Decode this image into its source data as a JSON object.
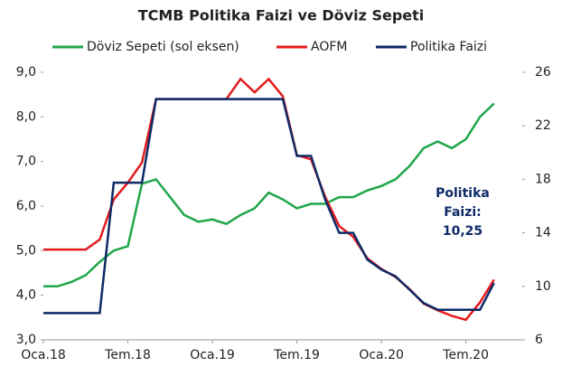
{
  "chart_data": {
    "type": "line",
    "title": "TCMB Politika Faizi ve Döviz Sepeti",
    "categories": [
      "Oca.18",
      null,
      null,
      null,
      null,
      null,
      "Tem.18",
      null,
      null,
      null,
      null,
      null,
      "Oca.19",
      null,
      null,
      null,
      null,
      null,
      "Tem.19",
      null,
      null,
      null,
      null,
      null,
      "Oca.20",
      null,
      null,
      null,
      null,
      null,
      "Tem.20",
      null,
      null
    ],
    "series": [
      {
        "name": "Döviz Sepeti (sol eksen)",
        "color": "#1fa64a",
        "axis": "y",
        "values": [
          4.2,
          4.2,
          4.3,
          4.45,
          4.75,
          5.0,
          5.1,
          6.5,
          6.6,
          6.2,
          5.8,
          5.65,
          5.7,
          5.6,
          5.8,
          5.95,
          6.3,
          6.15,
          5.95,
          6.05,
          6.05,
          6.2,
          6.2,
          6.35,
          6.45,
          6.6,
          6.9,
          7.3,
          7.45,
          7.3,
          7.5,
          8.0,
          8.3
        ]
      },
      {
        "name": "AOFM",
        "color": "#e41a1c",
        "axis": "y2",
        "values": [
          12.75,
          12.75,
          12.75,
          12.75,
          13.5,
          16.5,
          17.75,
          19.25,
          24,
          24,
          24,
          24,
          24,
          24,
          25.5,
          24.5,
          25.5,
          24.2,
          19.8,
          19.5,
          16.7,
          14.5,
          13.7,
          12.1,
          11.3,
          10.7,
          9.8,
          8.7,
          8.2,
          7.8,
          7.5,
          8.8,
          10.5
        ]
      },
      {
        "name": "Politika Faizi",
        "color": "#0d2a66",
        "axis": "y2",
        "values": [
          8,
          8,
          8,
          8,
          8,
          17.75,
          17.75,
          17.75,
          24,
          24,
          24,
          24,
          24,
          24,
          24,
          24,
          24,
          24,
          19.75,
          19.75,
          16.5,
          14,
          14,
          12,
          11.25,
          10.75,
          9.75,
          8.75,
          8.25,
          8.25,
          8.25,
          8.25,
          10.25
        ]
      }
    ],
    "ylim": [
      3,
      9
    ],
    "yticks": [
      {
        "value": 3,
        "label": "3,0"
      },
      {
        "value": 4,
        "label": "4,0"
      },
      {
        "value": 5,
        "label": "5,0"
      },
      {
        "value": 6,
        "label": "6,0"
      },
      {
        "value": 7,
        "label": "7,0"
      },
      {
        "value": 8,
        "label": "8,0"
      },
      {
        "value": 9,
        "label": "9,0"
      }
    ],
    "y2lim": [
      6,
      26
    ],
    "y2ticks": [
      6,
      10,
      14,
      18,
      22,
      26
    ],
    "annotation": [
      "Politika",
      "Faizi:",
      "10,25"
    ],
    "annotation_color": "#0d2a66",
    "legend": "top"
  }
}
